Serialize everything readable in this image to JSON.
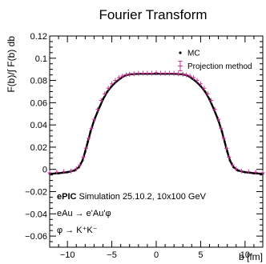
{
  "chart_data": {
    "type": "scatter",
    "title": "Fourier Transform",
    "xlabel": "b [fm]",
    "ylabel": "F(b)/∫ F(b) db",
    "xlim": [
      -12,
      12
    ],
    "ylim": [
      -0.07,
      0.12
    ],
    "x_ticks": [
      -10,
      -5,
      0,
      5,
      10
    ],
    "x_tick_labels": [
      "−10",
      "−5",
      "0",
      "5",
      "10"
    ],
    "y_ticks": [
      -0.06,
      -0.04,
      -0.02,
      0,
      0.02,
      0.04,
      0.06,
      0.08,
      0.1,
      0.12
    ],
    "y_tick_labels": [
      "−0.06",
      "−0.04",
      "−0.02",
      "0",
      "0.02",
      "0.04",
      "0.06",
      "0.08",
      "0.1",
      "0.12"
    ],
    "grid": false,
    "legend_position": "top-right",
    "annotations": [
      {
        "bold": "ePIC",
        "text": " Simulation 25.10.2, 10x100 GeV"
      },
      {
        "bold": "",
        "text": "eAu → e'Au'φ"
      },
      {
        "bold": "",
        "text": "φ → K⁺K⁻"
      }
    ],
    "series": [
      {
        "name": "MC",
        "color": "#000000",
        "marker": "dot",
        "x": [
          -12,
          -11,
          -10,
          -9.2,
          -8.7,
          -8.3,
          -8.0,
          -7.7,
          -7.4,
          -7.0,
          -6.5,
          -6.0,
          -5.5,
          -5.0,
          -4.5,
          -4.0,
          -3.5,
          -3.0,
          -2.0,
          -1.0,
          0,
          1.0,
          2.0,
          3.0,
          3.5,
          4.0,
          4.5,
          5.0,
          5.5,
          6.0,
          6.5,
          7.0,
          7.4,
          7.7,
          8.0,
          8.3,
          8.7,
          9.2,
          10,
          11,
          12
        ],
        "y": [
          -0.004,
          -0.0035,
          -0.0025,
          -0.001,
          0.002,
          0.008,
          0.016,
          0.025,
          0.034,
          0.044,
          0.054,
          0.063,
          0.07,
          0.075,
          0.079,
          0.082,
          0.0845,
          0.0855,
          0.086,
          0.086,
          0.086,
          0.086,
          0.086,
          0.0855,
          0.0845,
          0.082,
          0.079,
          0.075,
          0.07,
          0.063,
          0.054,
          0.044,
          0.034,
          0.025,
          0.016,
          0.008,
          0.002,
          -0.001,
          -0.0025,
          -0.0035,
          -0.004
        ]
      },
      {
        "name": "Projection method",
        "color": "#cc3399",
        "marker": "cross",
        "x": [
          -12,
          -11.2,
          -10.4,
          -9.6,
          -9.0,
          -8.6,
          -8.2,
          -7.9,
          -7.6,
          -7.3,
          -7.0,
          -6.6,
          -6.2,
          -5.8,
          -5.4,
          -5.0,
          -4.6,
          -4.2,
          -3.8,
          -3.4,
          -3.0,
          -2.5,
          -2.0,
          -1.5,
          -1.0,
          -0.5,
          0,
          0.5,
          1.0,
          1.5,
          2.0,
          2.5,
          3.0,
          3.4,
          3.8,
          4.2,
          4.6,
          5.0,
          5.4,
          5.8,
          6.2,
          6.6,
          7.0,
          7.3,
          7.6,
          7.9,
          8.2,
          8.6,
          9.0,
          9.6,
          10.4,
          11.2,
          12
        ],
        "y": [
          -0.003,
          -0.0025,
          -0.002,
          -0.0015,
          0.0005,
          0.004,
          0.011,
          0.019,
          0.028,
          0.037,
          0.045,
          0.054,
          0.062,
          0.068,
          0.073,
          0.077,
          0.08,
          0.0825,
          0.084,
          0.085,
          0.0855,
          0.086,
          0.0865,
          0.0865,
          0.0865,
          0.0865,
          0.087,
          0.0865,
          0.0865,
          0.0865,
          0.0865,
          0.086,
          0.0855,
          0.085,
          0.084,
          0.0825,
          0.08,
          0.077,
          0.073,
          0.068,
          0.062,
          0.054,
          0.045,
          0.037,
          0.028,
          0.019,
          0.011,
          0.004,
          0.0005,
          -0.0015,
          -0.002,
          -0.0025,
          -0.003
        ]
      }
    ]
  }
}
